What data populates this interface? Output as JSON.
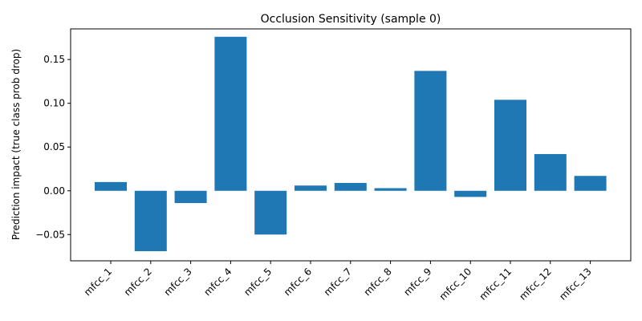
{
  "chart_data": {
    "type": "bar",
    "title": "Occlusion Sensitivity (sample 0)",
    "xlabel": "",
    "ylabel": "Prediction impact (true class prob drop)",
    "categories": [
      "mfcc_1",
      "mfcc_2",
      "mfcc_3",
      "mfcc_4",
      "mfcc_5",
      "mfcc_6",
      "mfcc_7",
      "mfcc_8",
      "mfcc_9",
      "mfcc_10",
      "mfcc_11",
      "mfcc_12",
      "mfcc_13"
    ],
    "values": [
      0.01,
      -0.069,
      -0.014,
      0.176,
      -0.05,
      0.006,
      0.009,
      0.003,
      0.137,
      -0.007,
      0.104,
      0.042,
      0.017
    ],
    "ylim": [
      -0.08,
      0.185
    ],
    "yticks": [
      -0.05,
      0.0,
      0.05,
      0.1,
      0.15
    ],
    "ytick_labels": [
      "−0.05",
      "0.00",
      "0.05",
      "0.10",
      "0.15"
    ],
    "bar_color": "#1f77b4",
    "grid": false,
    "legend": "none"
  }
}
